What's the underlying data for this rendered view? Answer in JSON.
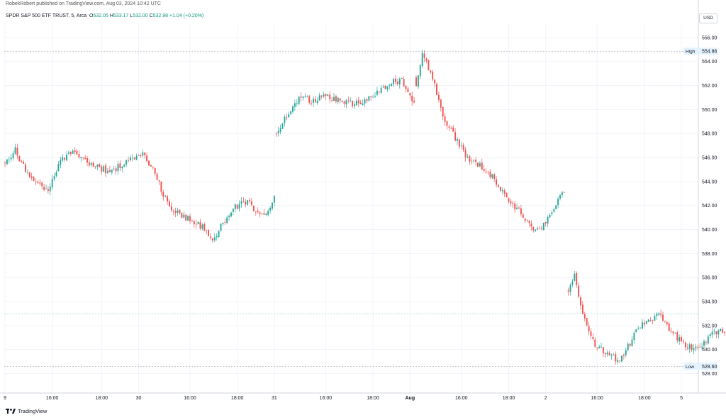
{
  "publisher": "RobekRobert published on TradingView.com, Aug 03, 2024 10:42 UTC",
  "legend": {
    "symbol": "SPDR S&P 500 ETF TRUST, 5, Arca",
    "open_label": "O",
    "open": "532.05",
    "high_label": "H",
    "high": "533.17",
    "low_label": "L",
    "low": "532.00",
    "close_label": "C",
    "close": "532.98",
    "change": "+1.04 (+0.20%)"
  },
  "currency": "USD",
  "logo_text": "TradingView",
  "colors": {
    "up": "#26a69a",
    "down": "#ef5350",
    "grid": "#f0f3fa",
    "axis_text": "#131722"
  },
  "chart_data": {
    "type": "candlestick",
    "ylim": [
      527.2,
      557.0
    ],
    "y_ticks": [
      "528.00",
      "530.00",
      "532.00",
      "534.00",
      "536.00",
      "538.00",
      "540.00",
      "542.00",
      "544.00",
      "546.00",
      "548.00",
      "550.00",
      "552.00",
      "554.00",
      "556.00"
    ],
    "x_ticks": [
      {
        "label": "9",
        "i": 0
      },
      {
        "label": "16:00",
        "i": 23
      },
      {
        "label": "18:00",
        "i": 47
      },
      {
        "label": "30",
        "i": 65
      },
      {
        "label": "16:00",
        "i": 90
      },
      {
        "label": "18:00",
        "i": 113
      },
      {
        "label": "31",
        "i": 131
      },
      {
        "label": "16:00",
        "i": 156
      },
      {
        "label": "18:00",
        "i": 179
      },
      {
        "label": "Aug",
        "i": 197
      },
      {
        "label": "16:00",
        "i": 222
      },
      {
        "label": "18:00",
        "i": 245
      },
      {
        "label": "2",
        "i": 263
      },
      {
        "label": "16:00",
        "i": 288
      },
      {
        "label": "18:00",
        "i": 311
      },
      {
        "label": "5",
        "i": 329
      }
    ],
    "high_marker": {
      "label": "High",
      "value": 554.86
    },
    "low_marker": {
      "label": "Low",
      "value": 528.6
    },
    "current_value": 532.98,
    "sessions": [
      {
        "date": "Jul 29",
        "start": 0,
        "keypoints": [
          [
            0,
            545.4
          ],
          [
            5,
            546.6
          ],
          [
            11,
            544.6
          ],
          [
            21,
            543.3
          ],
          [
            27,
            545.8
          ],
          [
            33,
            546.5
          ],
          [
            41,
            545.5
          ],
          [
            51,
            544.8
          ],
          [
            58,
            545.5
          ],
          [
            66,
            546.4
          ],
          [
            72,
            545.0
          ],
          [
            80,
            541.8
          ],
          [
            88,
            541.0
          ],
          [
            96,
            540.2
          ],
          [
            101,
            539.2
          ],
          [
            107,
            540.7
          ],
          [
            112,
            541.9
          ],
          [
            118,
            542.3
          ],
          [
            123,
            541.3
          ],
          [
            128,
            541.5
          ],
          [
            131,
            542.8
          ]
        ]
      },
      {
        "date": "Jul 30",
        "start": 132,
        "keypoints": [
          [
            0,
            548.0
          ],
          [
            5,
            549.6
          ],
          [
            11,
            551.0
          ],
          [
            18,
            550.7
          ],
          [
            24,
            551.2
          ],
          [
            30,
            550.8
          ],
          [
            36,
            550.5
          ],
          [
            42,
            550.5
          ],
          [
            49,
            551.5
          ],
          [
            55,
            552.2
          ],
          [
            61,
            552.5
          ],
          [
            64,
            551.5
          ],
          [
            67,
            550.6
          ]
        ]
      },
      {
        "date": "Jul 31",
        "start": 200,
        "keypoints": [
          [
            0,
            552.2
          ],
          [
            3,
            554.6
          ],
          [
            7,
            553.2
          ],
          [
            13,
            549.4
          ],
          [
            20,
            547.3
          ],
          [
            25,
            546.0
          ],
          [
            31,
            545.3
          ],
          [
            36,
            544.6
          ],
          [
            42,
            543.2
          ],
          [
            48,
            541.9
          ],
          [
            54,
            540.8
          ],
          [
            58,
            539.8
          ],
          [
            62,
            540.4
          ],
          [
            66,
            541.6
          ],
          [
            70,
            542.6
          ],
          [
            72,
            543.1
          ]
        ]
      },
      {
        "date": "Aug 1",
        "start": 274,
        "keypoints": [
          [
            0,
            534.8
          ],
          [
            3,
            536.3
          ],
          [
            7,
            532.8
          ],
          [
            13,
            530.2
          ],
          [
            19,
            529.8
          ],
          [
            24,
            529.0
          ],
          [
            29,
            530.2
          ],
          [
            34,
            531.8
          ],
          [
            39,
            532.3
          ],
          [
            44,
            532.9
          ],
          [
            49,
            531.6
          ],
          [
            54,
            530.8
          ],
          [
            59,
            530.2
          ],
          [
            64,
            530.2
          ],
          [
            69,
            531.2
          ],
          [
            74,
            531.5
          ],
          [
            79,
            531.5
          ],
          [
            82,
            531.8
          ],
          [
            86,
            532.9
          ]
        ]
      }
    ]
  }
}
